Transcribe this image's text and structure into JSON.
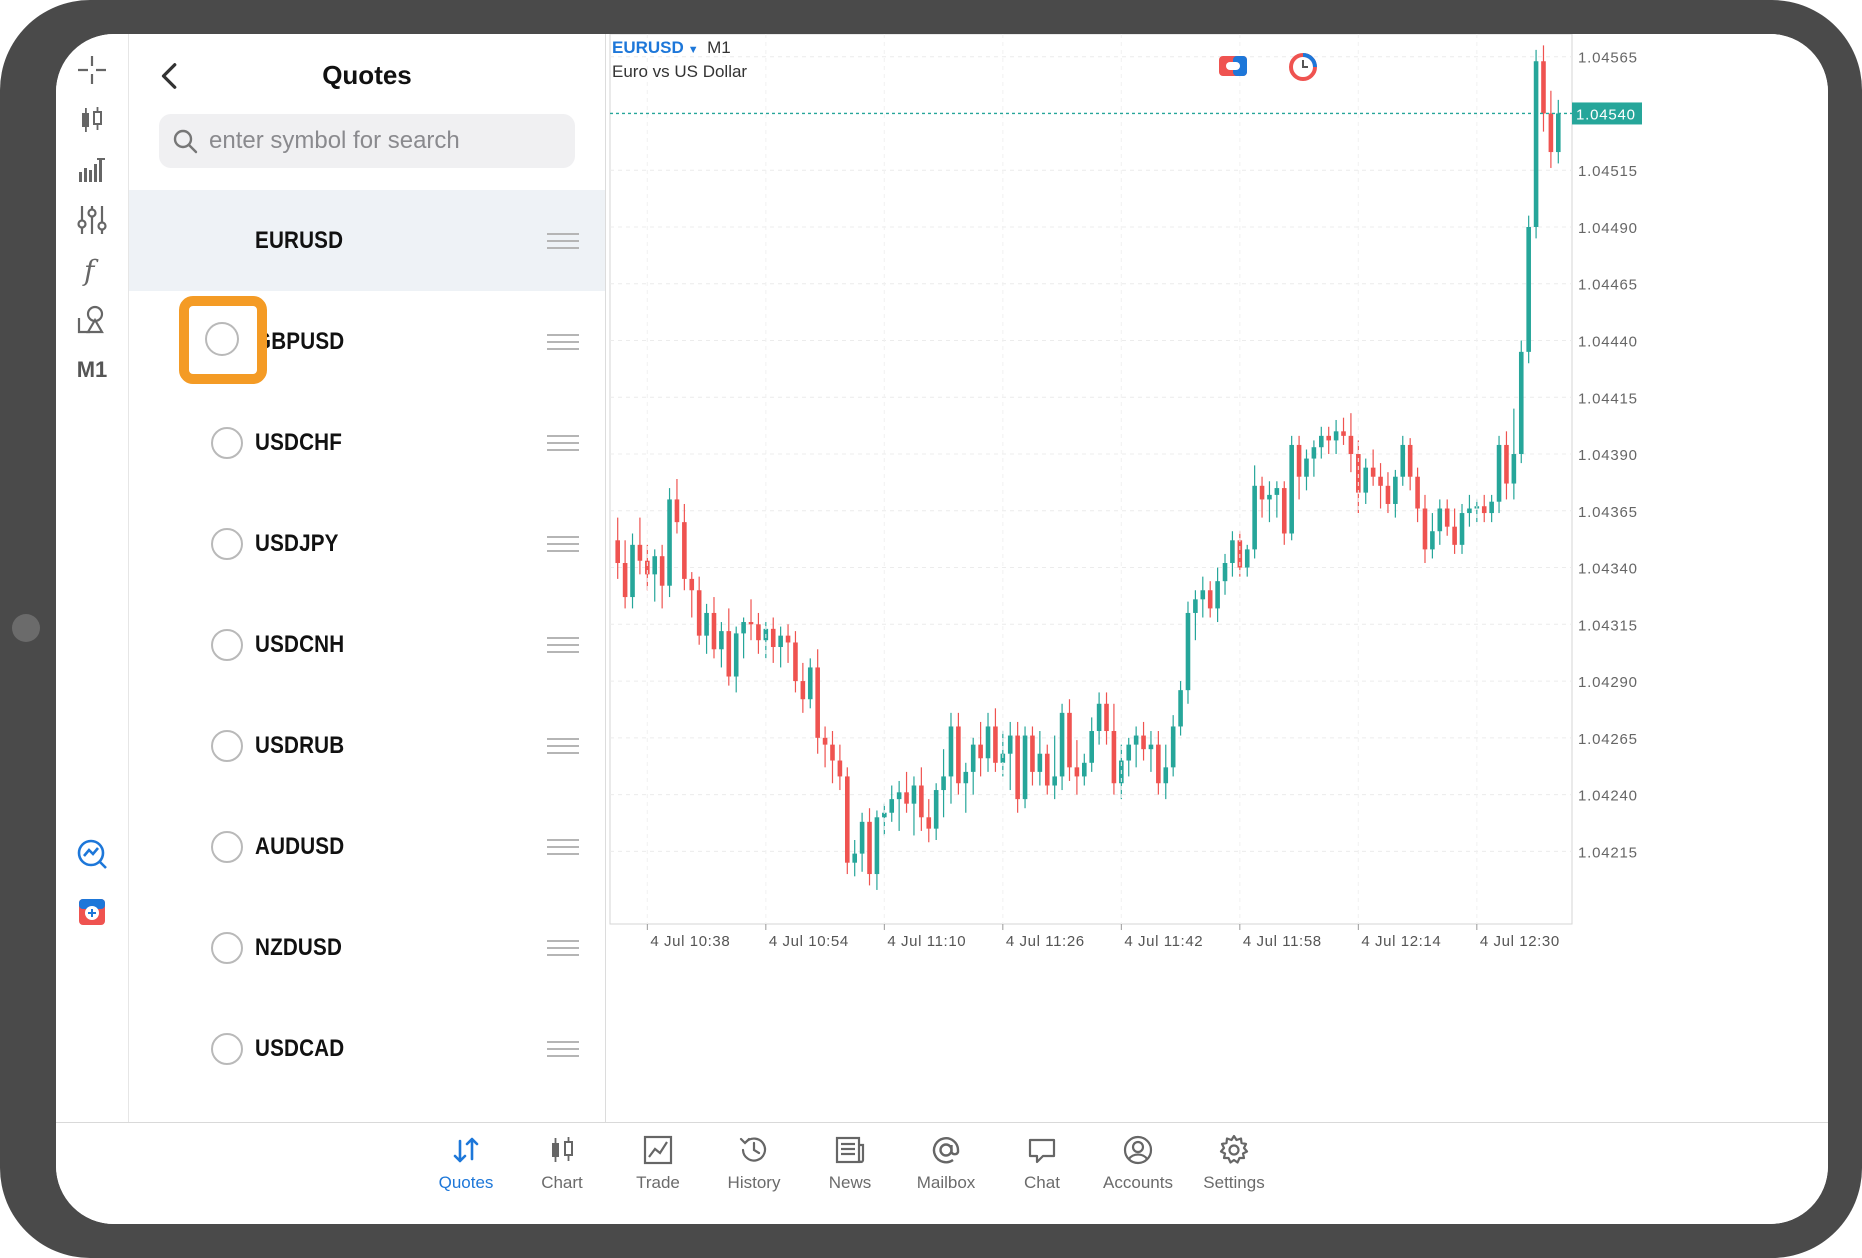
{
  "quotes_panel": {
    "title": "Quotes",
    "search_placeholder": "enter symbol for search",
    "symbols": [
      {
        "symbol": "EURUSD",
        "selected": true
      },
      {
        "symbol": "GBPUSD",
        "display": " ˑPUSD",
        "selected": false
      },
      {
        "symbol": "USDCHF",
        "selected": false
      },
      {
        "symbol": "USDJPY",
        "selected": false
      },
      {
        "symbol": "USDCNH",
        "selected": false
      },
      {
        "symbol": "USDRUB",
        "selected": false
      },
      {
        "symbol": "AUDUSD",
        "selected": false
      },
      {
        "symbol": "NZDUSD",
        "selected": false
      },
      {
        "symbol": "USDCAD",
        "selected": false
      }
    ]
  },
  "left_rail": {
    "items": [
      "crosshair-icon",
      "candles-icon",
      "volume-bars-icon",
      "settings-sliders-icon",
      "function-icon",
      "objects-icon",
      "M1",
      "trade-signals-icon",
      "one-click-trading-icon"
    ],
    "timeframe_label": "M1"
  },
  "chart_header": {
    "symbol": "EURUSD",
    "timeframe": "M1",
    "description": "Euro vs US Dollar"
  },
  "tabbar": {
    "tabs": [
      {
        "label": "Quotes",
        "icon": "quotes-arrows-icon",
        "active": true
      },
      {
        "label": "Chart",
        "icon": "chart-candles-icon",
        "active": false
      },
      {
        "label": "Trade",
        "icon": "trade-line-icon",
        "active": false
      },
      {
        "label": "History",
        "icon": "history-clock-icon",
        "active": false
      },
      {
        "label": "News",
        "icon": "news-icon",
        "active": false
      },
      {
        "label": "Mailbox",
        "icon": "at-sign-icon",
        "active": false
      },
      {
        "label": "Chat",
        "icon": "chat-bubble-icon",
        "active": false
      },
      {
        "label": "Accounts",
        "icon": "account-circle-icon",
        "active": false
      },
      {
        "label": "Settings",
        "icon": "gear-icon",
        "active": false
      }
    ]
  },
  "colors": {
    "bull": "#26a69a",
    "bear": "#ef5350",
    "accent": "#1d77d9",
    "highlight": "#f49b25",
    "price_line": "#26a69a"
  },
  "chart_data": {
    "type": "candlestick",
    "symbol": "EURUSD",
    "timeframe": "M1",
    "current_price": "1.04540",
    "y_ticks": [
      "1.04565",
      "1.04515",
      "1.04490",
      "1.04465",
      "1.04440",
      "1.04415",
      "1.04390",
      "1.04365",
      "1.04340",
      "1.04315",
      "1.04290",
      "1.04265",
      "1.04240",
      "1.04215"
    ],
    "ylim": [
      1.04183,
      1.04575
    ],
    "x_ticks": [
      "4 Jul 10:38",
      "4 Jul 10:54",
      "4 Jul 11:10",
      "4 Jul 11:26",
      "4 Jul 11:42",
      "4 Jul 11:58",
      "4 Jul 12:14",
      "4 Jul 12:30"
    ],
    "candles": [
      {
        "o": 1.04352,
        "h": 1.04362,
        "l": 1.04335,
        "c": 1.04342
      },
      {
        "o": 1.04342,
        "h": 1.04352,
        "l": 1.04322,
        "c": 1.04327
      },
      {
        "o": 1.04327,
        "h": 1.04355,
        "l": 1.04322,
        "c": 1.0435
      },
      {
        "o": 1.0435,
        "h": 1.04362,
        "l": 1.04337,
        "c": 1.04343
      },
      {
        "o": 1.04343,
        "h": 1.0435,
        "l": 1.0433,
        "c": 1.04337
      },
      {
        "o": 1.04337,
        "h": 1.04348,
        "l": 1.04325,
        "c": 1.04345
      },
      {
        "o": 1.04345,
        "h": 1.0435,
        "l": 1.04322,
        "c": 1.04332
      },
      {
        "o": 1.04332,
        "h": 1.04375,
        "l": 1.04327,
        "c": 1.0437
      },
      {
        "o": 1.0437,
        "h": 1.04379,
        "l": 1.04355,
        "c": 1.0436
      },
      {
        "o": 1.0436,
        "h": 1.04368,
        "l": 1.0433,
        "c": 1.04335
      },
      {
        "o": 1.04335,
        "h": 1.04338,
        "l": 1.04318,
        "c": 1.0433
      },
      {
        "o": 1.0433,
        "h": 1.04336,
        "l": 1.04306,
        "c": 1.0431
      },
      {
        "o": 1.0431,
        "h": 1.04324,
        "l": 1.04302,
        "c": 1.0432
      },
      {
        "o": 1.0432,
        "h": 1.04327,
        "l": 1.043,
        "c": 1.04304
      },
      {
        "o": 1.04304,
        "h": 1.04316,
        "l": 1.04296,
        "c": 1.04312
      },
      {
        "o": 1.04312,
        "h": 1.04322,
        "l": 1.04288,
        "c": 1.04292
      },
      {
        "o": 1.04292,
        "h": 1.04314,
        "l": 1.04285,
        "c": 1.04311
      },
      {
        "o": 1.04311,
        "h": 1.04318,
        "l": 1.043,
        "c": 1.04316
      },
      {
        "o": 1.04316,
        "h": 1.04326,
        "l": 1.04308,
        "c": 1.04315
      },
      {
        "o": 1.04315,
        "h": 1.0432,
        "l": 1.04302,
        "c": 1.04308
      },
      {
        "o": 1.04308,
        "h": 1.04316,
        "l": 1.043,
        "c": 1.04313
      },
      {
        "o": 1.04313,
        "h": 1.04318,
        "l": 1.04298,
        "c": 1.04305
      },
      {
        "o": 1.04305,
        "h": 1.04314,
        "l": 1.04296,
        "c": 1.0431
      },
      {
        "o": 1.0431,
        "h": 1.04315,
        "l": 1.04298,
        "c": 1.04307
      },
      {
        "o": 1.04307,
        "h": 1.04312,
        "l": 1.04285,
        "c": 1.0429
      },
      {
        "o": 1.0429,
        "h": 1.04298,
        "l": 1.04276,
        "c": 1.04282
      },
      {
        "o": 1.04282,
        "h": 1.043,
        "l": 1.04278,
        "c": 1.04296
      },
      {
        "o": 1.04296,
        "h": 1.04304,
        "l": 1.04258,
        "c": 1.04265
      },
      {
        "o": 1.04265,
        "h": 1.0427,
        "l": 1.04252,
        "c": 1.04262
      },
      {
        "o": 1.04262,
        "h": 1.04268,
        "l": 1.04245,
        "c": 1.04255
      },
      {
        "o": 1.04255,
        "h": 1.04262,
        "l": 1.04242,
        "c": 1.04248
      },
      {
        "o": 1.04248,
        "h": 1.04252,
        "l": 1.04205,
        "c": 1.0421
      },
      {
        "o": 1.0421,
        "h": 1.0422,
        "l": 1.04204,
        "c": 1.04214
      },
      {
        "o": 1.04214,
        "h": 1.04232,
        "l": 1.04206,
        "c": 1.04228
      },
      {
        "o": 1.04228,
        "h": 1.04234,
        "l": 1.042,
        "c": 1.04205
      },
      {
        "o": 1.04205,
        "h": 1.04233,
        "l": 1.04198,
        "c": 1.0423
      },
      {
        "o": 1.0423,
        "h": 1.04236,
        "l": 1.04222,
        "c": 1.04232
      },
      {
        "o": 1.04232,
        "h": 1.04244,
        "l": 1.04228,
        "c": 1.04238
      },
      {
        "o": 1.04238,
        "h": 1.04246,
        "l": 1.04224,
        "c": 1.04241
      },
      {
        "o": 1.04241,
        "h": 1.0425,
        "l": 1.04232,
        "c": 1.04236
      },
      {
        "o": 1.04236,
        "h": 1.04248,
        "l": 1.04222,
        "c": 1.04244
      },
      {
        "o": 1.04244,
        "h": 1.04252,
        "l": 1.04224,
        "c": 1.0423
      },
      {
        "o": 1.0423,
        "h": 1.04238,
        "l": 1.04219,
        "c": 1.04225
      },
      {
        "o": 1.04225,
        "h": 1.04245,
        "l": 1.0422,
        "c": 1.04242
      },
      {
        "o": 1.04242,
        "h": 1.0426,
        "l": 1.0423,
        "c": 1.04248
      },
      {
        "o": 1.04248,
        "h": 1.04276,
        "l": 1.04236,
        "c": 1.0427
      },
      {
        "o": 1.0427,
        "h": 1.04276,
        "l": 1.0424,
        "c": 1.04245
      },
      {
        "o": 1.04245,
        "h": 1.04254,
        "l": 1.04232,
        "c": 1.0425
      },
      {
        "o": 1.0425,
        "h": 1.04265,
        "l": 1.0424,
        "c": 1.04262
      },
      {
        "o": 1.04262,
        "h": 1.04272,
        "l": 1.04248,
        "c": 1.04256
      },
      {
        "o": 1.04256,
        "h": 1.04276,
        "l": 1.0425,
        "c": 1.0427
      },
      {
        "o": 1.0427,
        "h": 1.04278,
        "l": 1.0425,
        "c": 1.04254
      },
      {
        "o": 1.04254,
        "h": 1.04268,
        "l": 1.04248,
        "c": 1.04258
      },
      {
        "o": 1.04258,
        "h": 1.04272,
        "l": 1.04242,
        "c": 1.04266
      },
      {
        "o": 1.04266,
        "h": 1.04272,
        "l": 1.04232,
        "c": 1.04238
      },
      {
        "o": 1.04238,
        "h": 1.0427,
        "l": 1.04234,
        "c": 1.04266
      },
      {
        "o": 1.04266,
        "h": 1.0427,
        "l": 1.04244,
        "c": 1.0425
      },
      {
        "o": 1.0425,
        "h": 1.04268,
        "l": 1.04244,
        "c": 1.04258
      },
      {
        "o": 1.04258,
        "h": 1.04262,
        "l": 1.0424,
        "c": 1.04244
      },
      {
        "o": 1.04244,
        "h": 1.04266,
        "l": 1.04238,
        "c": 1.04248
      },
      {
        "o": 1.04248,
        "h": 1.0428,
        "l": 1.04242,
        "c": 1.04276
      },
      {
        "o": 1.04276,
        "h": 1.04282,
        "l": 1.04246,
        "c": 1.04252
      },
      {
        "o": 1.04252,
        "h": 1.04264,
        "l": 1.0424,
        "c": 1.04248
      },
      {
        "o": 1.04248,
        "h": 1.04258,
        "l": 1.04244,
        "c": 1.04254
      },
      {
        "o": 1.04254,
        "h": 1.04274,
        "l": 1.0425,
        "c": 1.04268
      },
      {
        "o": 1.04268,
        "h": 1.04285,
        "l": 1.04262,
        "c": 1.0428
      },
      {
        "o": 1.0428,
        "h": 1.04285,
        "l": 1.04262,
        "c": 1.04268
      },
      {
        "o": 1.04268,
        "h": 1.0428,
        "l": 1.0424,
        "c": 1.04245
      },
      {
        "o": 1.04245,
        "h": 1.04262,
        "l": 1.04238,
        "c": 1.04255
      },
      {
        "o": 1.04255,
        "h": 1.04265,
        "l": 1.04248,
        "c": 1.04262
      },
      {
        "o": 1.04262,
        "h": 1.0427,
        "l": 1.04252,
        "c": 1.04266
      },
      {
        "o": 1.04266,
        "h": 1.04272,
        "l": 1.04255,
        "c": 1.0426
      },
      {
        "o": 1.0426,
        "h": 1.04268,
        "l": 1.0425,
        "c": 1.04262
      },
      {
        "o": 1.04262,
        "h": 1.04268,
        "l": 1.0424,
        "c": 1.04245
      },
      {
        "o": 1.04245,
        "h": 1.04262,
        "l": 1.04238,
        "c": 1.04252
      },
      {
        "o": 1.04252,
        "h": 1.04275,
        "l": 1.04248,
        "c": 1.0427
      },
      {
        "o": 1.0427,
        "h": 1.0429,
        "l": 1.04266,
        "c": 1.04286
      },
      {
        "o": 1.04286,
        "h": 1.04325,
        "l": 1.0428,
        "c": 1.0432
      },
      {
        "o": 1.0432,
        "h": 1.0433,
        "l": 1.04308,
        "c": 1.04326
      },
      {
        "o": 1.04326,
        "h": 1.04336,
        "l": 1.04318,
        "c": 1.0433
      },
      {
        "o": 1.0433,
        "h": 1.04334,
        "l": 1.04318,
        "c": 1.04322
      },
      {
        "o": 1.04322,
        "h": 1.0434,
        "l": 1.04316,
        "c": 1.04334
      },
      {
        "o": 1.04334,
        "h": 1.04346,
        "l": 1.04328,
        "c": 1.04342
      },
      {
        "o": 1.04342,
        "h": 1.04356,
        "l": 1.04336,
        "c": 1.04352
      },
      {
        "o": 1.04352,
        "h": 1.04356,
        "l": 1.04336,
        "c": 1.0434
      },
      {
        "o": 1.0434,
        "h": 1.0435,
        "l": 1.04336,
        "c": 1.04348
      },
      {
        "o": 1.04348,
        "h": 1.04385,
        "l": 1.04344,
        "c": 1.04376
      },
      {
        "o": 1.04376,
        "h": 1.0438,
        "l": 1.04362,
        "c": 1.0437
      },
      {
        "o": 1.0437,
        "h": 1.04378,
        "l": 1.0436,
        "c": 1.04372
      },
      {
        "o": 1.04372,
        "h": 1.04378,
        "l": 1.04362,
        "c": 1.04375
      },
      {
        "o": 1.04375,
        "h": 1.04378,
        "l": 1.0435,
        "c": 1.04355
      },
      {
        "o": 1.04355,
        "h": 1.04398,
        "l": 1.04352,
        "c": 1.04394
      },
      {
        "o": 1.04394,
        "h": 1.04398,
        "l": 1.0437,
        "c": 1.0438
      },
      {
        "o": 1.0438,
        "h": 1.04392,
        "l": 1.04374,
        "c": 1.04388
      },
      {
        "o": 1.04388,
        "h": 1.04396,
        "l": 1.0438,
        "c": 1.04393
      },
      {
        "o": 1.04393,
        "h": 1.04402,
        "l": 1.04388,
        "c": 1.04398
      },
      {
        "o": 1.04398,
        "h": 1.04402,
        "l": 1.0439,
        "c": 1.04396
      },
      {
        "o": 1.04396,
        "h": 1.04405,
        "l": 1.0439,
        "c": 1.044
      },
      {
        "o": 1.044,
        "h": 1.04406,
        "l": 1.04394,
        "c": 1.04398
      },
      {
        "o": 1.04398,
        "h": 1.04408,
        "l": 1.04382,
        "c": 1.0439
      },
      {
        "o": 1.0439,
        "h": 1.04396,
        "l": 1.04364,
        "c": 1.04373
      },
      {
        "o": 1.04373,
        "h": 1.04388,
        "l": 1.04368,
        "c": 1.04384
      },
      {
        "o": 1.04384,
        "h": 1.04392,
        "l": 1.04376,
        "c": 1.0438
      },
      {
        "o": 1.0438,
        "h": 1.04386,
        "l": 1.04366,
        "c": 1.04376
      },
      {
        "o": 1.04376,
        "h": 1.04382,
        "l": 1.04364,
        "c": 1.04368
      },
      {
        "o": 1.04368,
        "h": 1.04383,
        "l": 1.04362,
        "c": 1.0438
      },
      {
        "o": 1.0438,
        "h": 1.04398,
        "l": 1.04376,
        "c": 1.04394
      },
      {
        "o": 1.04394,
        "h": 1.04397,
        "l": 1.04374,
        "c": 1.0438
      },
      {
        "o": 1.0438,
        "h": 1.04384,
        "l": 1.0436,
        "c": 1.04366
      },
      {
        "o": 1.04366,
        "h": 1.04372,
        "l": 1.04342,
        "c": 1.04348
      },
      {
        "o": 1.04348,
        "h": 1.04364,
        "l": 1.04344,
        "c": 1.04356
      },
      {
        "o": 1.04356,
        "h": 1.0437,
        "l": 1.0435,
        "c": 1.04366
      },
      {
        "o": 1.04366,
        "h": 1.0437,
        "l": 1.04354,
        "c": 1.04358
      },
      {
        "o": 1.04358,
        "h": 1.04366,
        "l": 1.04346,
        "c": 1.0435
      },
      {
        "o": 1.0435,
        "h": 1.04368,
        "l": 1.04346,
        "c": 1.04364
      },
      {
        "o": 1.04364,
        "h": 1.04372,
        "l": 1.04358,
        "c": 1.04366
      },
      {
        "o": 1.04366,
        "h": 1.0437,
        "l": 1.0436,
        "c": 1.04367
      },
      {
        "o": 1.04367,
        "h": 1.04372,
        "l": 1.0436,
        "c": 1.04364
      },
      {
        "o": 1.04364,
        "h": 1.04372,
        "l": 1.0436,
        "c": 1.04369
      },
      {
        "o": 1.04369,
        "h": 1.04398,
        "l": 1.04364,
        "c": 1.04394
      },
      {
        "o": 1.04394,
        "h": 1.044,
        "l": 1.0437,
        "c": 1.04377
      },
      {
        "o": 1.04377,
        "h": 1.0441,
        "l": 1.0437,
        "c": 1.0439
      },
      {
        "o": 1.0439,
        "h": 1.0444,
        "l": 1.04386,
        "c": 1.04435
      },
      {
        "o": 1.04435,
        "h": 1.04495,
        "l": 1.0443,
        "c": 1.0449
      },
      {
        "o": 1.0449,
        "h": 1.04568,
        "l": 1.04485,
        "c": 1.04563
      },
      {
        "o": 1.04563,
        "h": 1.0457,
        "l": 1.04532,
        "c": 1.0454
      },
      {
        "o": 1.0454,
        "h": 1.0455,
        "l": 1.04516,
        "c": 1.04523
      },
      {
        "o": 1.04523,
        "h": 1.04546,
        "l": 1.04518,
        "c": 1.0454
      }
    ]
  }
}
